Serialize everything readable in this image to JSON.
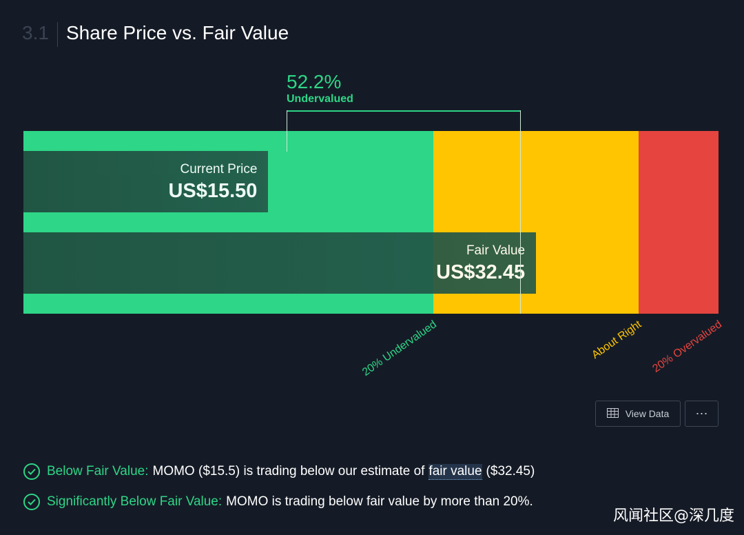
{
  "header": {
    "section_number": "3.1",
    "title": "Share Price vs. Fair Value"
  },
  "chart_data": {
    "type": "bar",
    "orientation": "horizontal",
    "currency": "US$",
    "current_price": 15.5,
    "fair_value": 32.45,
    "difference": {
      "value": "52.2%",
      "label": "Undervalued"
    },
    "bars": [
      {
        "label": "Current Price",
        "value_text": "US$15.50",
        "value": 15.5
      },
      {
        "label": "Fair Value",
        "value_text": "US$32.45",
        "value": 32.45
      }
    ],
    "zones": [
      {
        "name": "20% Undervalued",
        "from": 0,
        "to": 25.96,
        "color": "#2ed687"
      },
      {
        "name": "About Right",
        "from": 25.96,
        "to": 38.94,
        "color": "#ffc500"
      },
      {
        "name": "20% Overvalued",
        "from": 38.94,
        "to": 44.0,
        "color": "#e5443f"
      }
    ],
    "zone_label_colors": [
      "#2ed687",
      "#ffc500",
      "#e5443f"
    ]
  },
  "actions": {
    "view_data_label": "View Data",
    "more_label": "⋯"
  },
  "checks": [
    {
      "label": "Below Fair Value:",
      "text_before": "MOMO ($15.5) is trading below our estimate of",
      "link": "fair value",
      "text_after": "($32.45)"
    },
    {
      "label": "Significantly Below Fair Value:",
      "text": "MOMO is trading below fair value by more than 20%."
    }
  ],
  "watermark": "风闻社区@深几度"
}
